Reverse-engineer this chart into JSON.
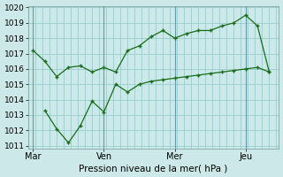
{
  "title": "Pression niveau de la mer( hPa )",
  "bg_color": "#cce8e8",
  "grid_color": "#99cccc",
  "line_color": "#1a6b1a",
  "ylim": [
    1011,
    1020
  ],
  "yticks": [
    1011,
    1012,
    1013,
    1014,
    1015,
    1016,
    1017,
    1018,
    1019,
    1020
  ],
  "xtick_labels": [
    "Mar",
    "Ven",
    "Mer",
    "Jeu"
  ],
  "xtick_positions": [
    0,
    30,
    60,
    90
  ],
  "line1_x": [
    0,
    5,
    10,
    15,
    20,
    25,
    30,
    35,
    40,
    45,
    50,
    55,
    60,
    65,
    70,
    75,
    80,
    85,
    90,
    95,
    100
  ],
  "line1_y": [
    1017.2,
    1016.5,
    1015.5,
    1016.1,
    1016.2,
    1015.8,
    1016.1,
    1015.8,
    1017.2,
    1017.5,
    1018.1,
    1018.5,
    1018.0,
    1018.3,
    1018.5,
    1018.5,
    1018.8,
    1019.0,
    1019.5,
    1018.8,
    1015.8
  ],
  "line2_x": [
    5,
    10,
    15,
    20,
    25,
    30,
    35,
    40,
    45,
    50,
    55,
    60,
    65,
    70,
    75,
    80,
    85,
    90,
    95,
    100
  ],
  "line2_y": [
    1013.3,
    1012.1,
    1011.2,
    1012.3,
    1013.9,
    1013.2,
    1015.0,
    1014.5,
    1015.0,
    1015.2,
    1015.3,
    1015.4,
    1015.5,
    1015.6,
    1015.7,
    1015.8,
    1015.9,
    1016.0,
    1016.1,
    1015.8
  ],
  "vline_positions": [
    0,
    30,
    60,
    90
  ],
  "xlim": [
    -2,
    104
  ],
  "vline_color": "#6699aa",
  "vline_lw": 0.8
}
